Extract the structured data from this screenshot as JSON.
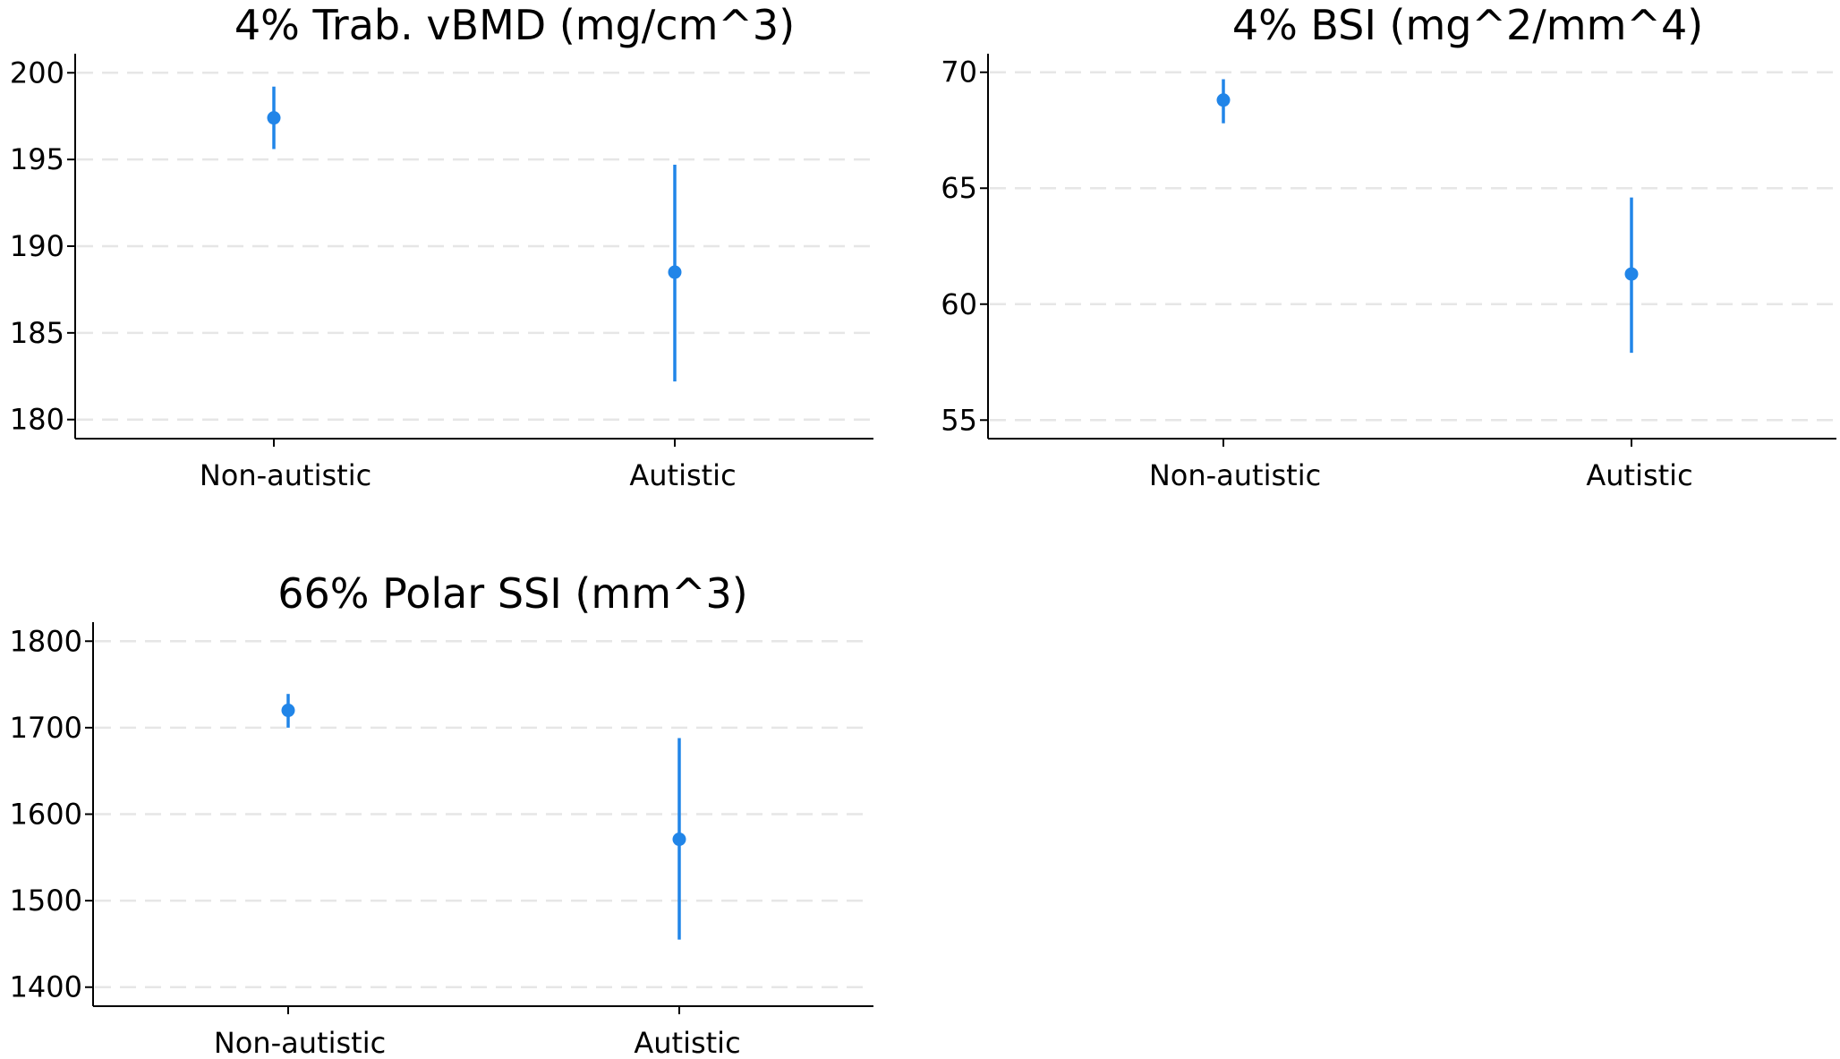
{
  "figure": {
    "panels": [
      {
        "title": "4% Trab. vBMD (mg/cm^3)"
      },
      {
        "title": "4% BSI (mg^2/mm^4)"
      },
      {
        "title": "66% Polar SSI (mm^3)"
      }
    ]
  },
  "colors": {
    "marker": "#2185e8",
    "axis": "#000000",
    "grid": "#e6e6e6",
    "background": "#ffffff"
  },
  "chart_data": [
    {
      "type": "scatter",
      "subtype": "point-with-error-bars",
      "title": "4% Trab. vBMD (mg/cm^3)",
      "categories": [
        "Non-autistic",
        "Autistic"
      ],
      "series": [
        {
          "values": [
            197.4,
            188.5
          ],
          "lower": [
            195.6,
            182.2
          ],
          "upper": [
            199.2,
            194.7
          ]
        }
      ],
      "yticks": [
        180,
        185,
        190,
        195,
        200
      ],
      "ylim": [
        178.9,
        201.1
      ],
      "grid": "horizontal-dashed"
    },
    {
      "type": "scatter",
      "subtype": "point-with-error-bars",
      "title": "4% BSI (mg^2/mm^4)",
      "categories": [
        "Non-autistic",
        "Autistic"
      ],
      "series": [
        {
          "values": [
            68.8,
            61.3
          ],
          "lower": [
            67.8,
            57.9
          ],
          "upper": [
            69.7,
            64.6
          ]
        }
      ],
      "yticks": [
        55,
        60,
        65,
        70
      ],
      "ylim": [
        54.2,
        70.8
      ],
      "grid": "horizontal-dashed"
    },
    {
      "type": "scatter",
      "subtype": "point-with-error-bars",
      "title": "66% Polar SSI (mm^3)",
      "categories": [
        "Non-autistic",
        "Autistic"
      ],
      "series": [
        {
          "values": [
            1720,
            1571
          ],
          "lower": [
            1700,
            1455
          ],
          "upper": [
            1739,
            1688
          ]
        }
      ],
      "yticks": [
        1400,
        1500,
        1600,
        1700,
        1800
      ],
      "ylim": [
        1378,
        1822
      ],
      "grid": "horizontal-dashed"
    }
  ]
}
